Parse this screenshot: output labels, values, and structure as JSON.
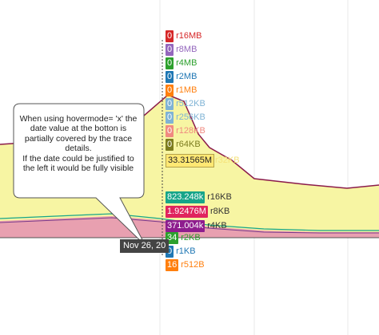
{
  "chart_data": {
    "type": "area",
    "hovermode": "x",
    "hover_labels": [
      {
        "value": "0",
        "name": "r16MB",
        "color": "#d62728"
      },
      {
        "value": "0",
        "name": "r8MB",
        "color": "#9467bd"
      },
      {
        "value": "0",
        "name": "r4MB",
        "color": "#2ca02c"
      },
      {
        "value": "0",
        "name": "r2MB",
        "color": "#1f77b4"
      },
      {
        "value": "0",
        "name": "r1MB",
        "color": "#ff7f0e"
      },
      {
        "value": "0",
        "name": "r512KB",
        "color": "#7fb3d5"
      },
      {
        "value": "0",
        "name": "r256KB",
        "color": "#7fb3d5"
      },
      {
        "value": "0",
        "name": "r128KB",
        "color": "#f08a80"
      },
      {
        "value": "0",
        "name": "r64KB",
        "color": "#7d7d20"
      }
    ],
    "highlight_label": {
      "value": "33.31565M",
      "name": "r32KB"
    },
    "hover_labels_lower": [
      {
        "value": "823.248k",
        "name": "r16KB",
        "color": "#17a589"
      },
      {
        "value": "1.92476M",
        "name": "r8KB",
        "color": "#e0245e"
      },
      {
        "value": "371.004k",
        "name": "r4KB",
        "color": "#8e1d8e"
      },
      {
        "value": "34",
        "name": "r2KB",
        "color": "#2ca02c"
      },
      {
        "value": "0",
        "name": "r1KB",
        "color": "#1f77b4"
      },
      {
        "value": "16",
        "name": "r512B",
        "color": "#ff7f0e"
      }
    ],
    "x_hover_label": "Nov 26, 20"
  },
  "callout": {
    "text": "When using hovermode= 'x' the date value at the botton is partially covered by the trace details.\nIf the date could be justified to the left it would be fully visible"
  },
  "colors": {
    "area_top": "#f7f5a3",
    "area_line": "#8b1b4a",
    "area_pink": "#e8a0b0",
    "grid": "#e6e6e6"
  }
}
